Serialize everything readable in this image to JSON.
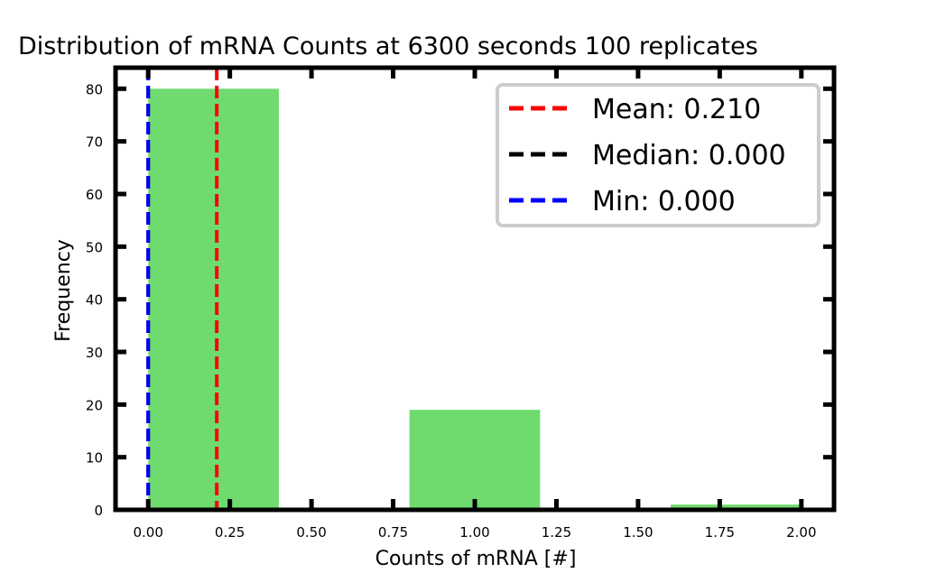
{
  "chart_data": {
    "type": "bar",
    "title": "Distribution of mRNA Counts at 6300 seconds 100 replicates",
    "xlabel": "Counts of mRNA [#]",
    "ylabel": "Frequency",
    "xlim": [
      -0.1,
      2.1
    ],
    "ylim": [
      0,
      84
    ],
    "xticks": [
      0.0,
      0.25,
      0.5,
      0.75,
      1.0,
      1.25,
      1.5,
      1.75,
      2.0
    ],
    "xtick_labels": [
      "0.00",
      "0.25",
      "0.50",
      "0.75",
      "1.00",
      "1.25",
      "1.50",
      "1.75",
      "2.00"
    ],
    "yticks": [
      0,
      10,
      20,
      30,
      40,
      50,
      60,
      70,
      80
    ],
    "ytick_labels": [
      "0",
      "10",
      "20",
      "30",
      "40",
      "50",
      "60",
      "70",
      "80"
    ],
    "bins": [
      {
        "start": 0.0,
        "end": 0.4,
        "count": 80
      },
      {
        "start": 0.8,
        "end": 1.2,
        "count": 19
      },
      {
        "start": 1.6,
        "end": 2.0,
        "count": 1
      }
    ],
    "bar_color": "#6fdb6f",
    "vlines": [
      {
        "name": "Mean",
        "label": "Mean: 0.210",
        "x": 0.21,
        "color": "#ff0000"
      },
      {
        "name": "Median",
        "label": "Median: 0.000",
        "x": 0.0,
        "color": "#000000"
      },
      {
        "name": "Min",
        "label": "Min: 0.000",
        "x": 0.0,
        "color": "#0000ff"
      }
    ],
    "legend_position": "top-right",
    "grid": false
  }
}
